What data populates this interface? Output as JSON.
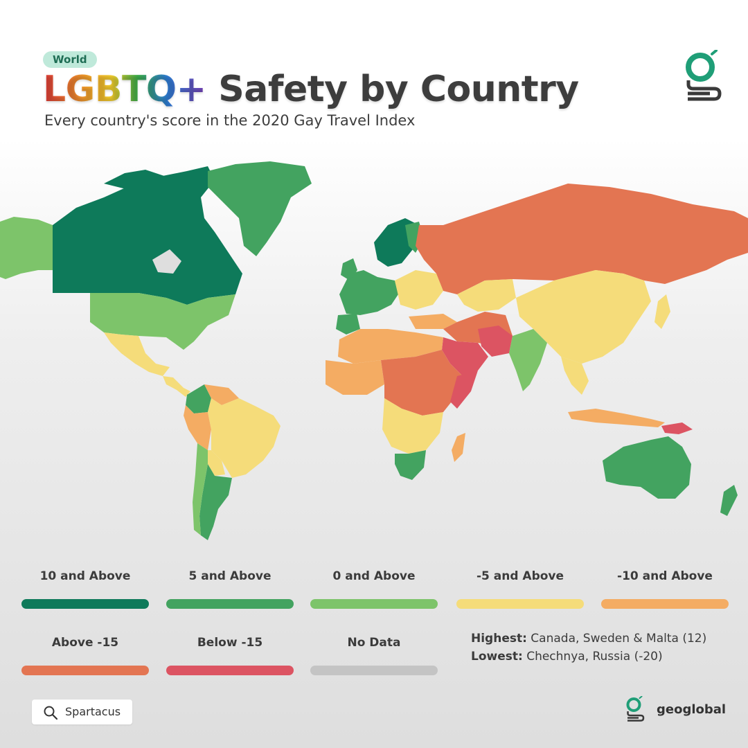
{
  "header": {
    "tag": "World",
    "title_highlight": "LGBTQ+",
    "title_rest": " Safety by Country",
    "subtitle": "Every country's score in the 2020 Gay Travel Index"
  },
  "legend": [
    {
      "label": "10 and Above",
      "color": "#0e7a5a"
    },
    {
      "label": "5 and Above",
      "color": "#43a360"
    },
    {
      "label": "0 and Above",
      "color": "#7dc46a"
    },
    {
      "label": "-5 and Above",
      "color": "#f5dc7a"
    },
    {
      "label": "-10 and Above",
      "color": "#f4ac63"
    },
    {
      "label": "Above -15",
      "color": "#e37552"
    },
    {
      "label": "Below -15",
      "color": "#dc5462"
    },
    {
      "label": "No Data",
      "color": "#c4c4c4"
    }
  ],
  "facts": {
    "highest_label": "Highest:",
    "highest_value": " Canada, Sweden & Malta (12)",
    "lowest_label": "Lowest:",
    "lowest_value": " Chechnya, Russia (-20)"
  },
  "source": {
    "icon": "search-icon",
    "label": "Spartacus"
  },
  "brand": {
    "icon": "geoglobal-logo-icon",
    "name": "geoglobal"
  },
  "map_regions": [
    {
      "name": "Canada",
      "category": "10 and Above"
    },
    {
      "name": "Sweden",
      "category": "10 and Above"
    },
    {
      "name": "Malta",
      "category": "10 and Above"
    },
    {
      "name": "Greenland",
      "category": "5 and Above"
    },
    {
      "name": "Australia",
      "category": "5 and Above"
    },
    {
      "name": "United States",
      "category": "0 and Above"
    },
    {
      "name": "Russia",
      "category": "Above -15"
    },
    {
      "name": "China",
      "category": "-5 and Above"
    },
    {
      "name": "Saudi Arabia",
      "category": "Below -15"
    },
    {
      "name": "India",
      "category": "0 and Above"
    },
    {
      "name": "Brazil",
      "category": "-5 and Above"
    },
    {
      "name": "Argentina",
      "category": "5 and Above"
    }
  ]
}
